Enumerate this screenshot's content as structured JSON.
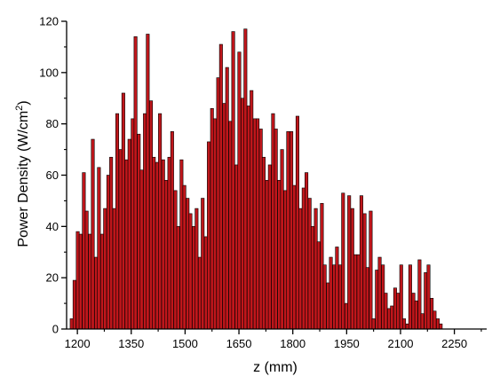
{
  "chart_data": {
    "type": "bar",
    "xlabel": "z (mm)",
    "ylabel_main": "Power Density (W/cm",
    "ylabel_sup": "2",
    "ylabel_close": ")",
    "xlim": [
      1170,
      2340
    ],
    "ylim": [
      0,
      120
    ],
    "x_ticks": [
      1200,
      1350,
      1500,
      1650,
      1800,
      1950,
      2100,
      2250
    ],
    "y_ticks": [
      0,
      20,
      40,
      60,
      80,
      100,
      120
    ],
    "bar_width": 8.5,
    "grid": false,
    "colors": {
      "bar_fill": "#c0161b",
      "bar_edge": "#000000",
      "axis": "#000000"
    },
    "x": [
      1184,
      1192,
      1201,
      1209,
      1218,
      1226,
      1235,
      1243,
      1252,
      1260,
      1269,
      1277,
      1286,
      1294,
      1303,
      1311,
      1320,
      1328,
      1337,
      1345,
      1354,
      1362,
      1371,
      1379,
      1388,
      1396,
      1405,
      1413,
      1422,
      1430,
      1439,
      1447,
      1456,
      1464,
      1473,
      1481,
      1490,
      1498,
      1507,
      1515,
      1524,
      1532,
      1541,
      1549,
      1558,
      1566,
      1575,
      1583,
      1592,
      1600,
      1609,
      1617,
      1626,
      1634,
      1643,
      1651,
      1660,
      1668,
      1677,
      1685,
      1694,
      1702,
      1711,
      1719,
      1728,
      1736,
      1745,
      1753,
      1762,
      1770,
      1779,
      1787,
      1796,
      1804,
      1813,
      1821,
      1830,
      1838,
      1847,
      1855,
      1864,
      1872,
      1881,
      1889,
      1898,
      1906,
      1915,
      1923,
      1932,
      1940,
      1949,
      1957,
      1966,
      1974,
      1983,
      1991,
      2000,
      2008,
      2017,
      2025,
      2034,
      2042,
      2051,
      2059,
      2068,
      2076,
      2085,
      2093,
      2102,
      2110,
      2119,
      2127,
      2136,
      2144,
      2153,
      2161,
      2170,
      2178,
      2187,
      2195,
      2204,
      2212,
      2221,
      2229,
      2238,
      2246,
      2255,
      2263,
      2272,
      2280,
      2289,
      2297
    ],
    "values": [
      4,
      19,
      38,
      37,
      61,
      46,
      37,
      74,
      28,
      63,
      37,
      47,
      60,
      67,
      47,
      84,
      70,
      92,
      66,
      74,
      82,
      114,
      76,
      62,
      84,
      115,
      89,
      67,
      65,
      84,
      66,
      58,
      67,
      77,
      54,
      40,
      66,
      56,
      51,
      45,
      40,
      47,
      28,
      51,
      36,
      73,
      86,
      82,
      98,
      111,
      88,
      102,
      81,
      116,
      64,
      108,
      90,
      117,
      87,
      93,
      82,
      82,
      78,
      67,
      58,
      64,
      84,
      78,
      58,
      70,
      54,
      77,
      77,
      56,
      83,
      47,
      55,
      61,
      51,
      40,
      47,
      34,
      49,
      25,
      18,
      28,
      25,
      32,
      25,
      53,
      10,
      52,
      47,
      29,
      29,
      52,
      45,
      24,
      46,
      4,
      23,
      28,
      25,
      14,
      8,
      9,
      16,
      14,
      25,
      4,
      2,
      25,
      14,
      11,
      27,
      6,
      22,
      25,
      12,
      7,
      4,
      2,
      0,
      0,
      0,
      0,
      0,
      0,
      0,
      0,
      0,
      0
    ]
  }
}
